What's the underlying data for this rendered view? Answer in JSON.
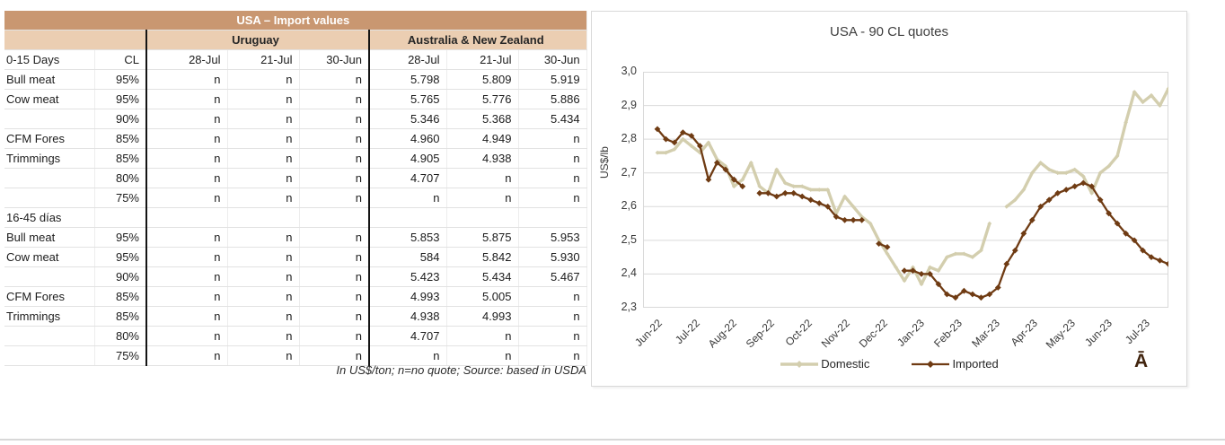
{
  "table": {
    "title": "USA – Import values",
    "group_left_label": "Uruguay",
    "group_right_label": "Australia & New Zealand",
    "header": {
      "section": "0-15 Days",
      "cl": "CL",
      "dates": [
        "28-Jul",
        "21-Jul",
        "30-Jun"
      ]
    },
    "rows": [
      {
        "item": "Bull meat",
        "cl": "95%",
        "values": [
          "n",
          "n",
          "n",
          "5.798",
          "5.809",
          "5.919"
        ]
      },
      {
        "item": "Cow meat",
        "cl": "95%",
        "values": [
          "n",
          "n",
          "n",
          "5.765",
          "5.776",
          "5.886"
        ]
      },
      {
        "item": "",
        "cl": "90%",
        "values": [
          "n",
          "n",
          "n",
          "5.346",
          "5.368",
          "5.434"
        ]
      },
      {
        "item": "CFM Fores",
        "cl": "85%",
        "values": [
          "n",
          "n",
          "n",
          "4.960",
          "4.949",
          "n"
        ]
      },
      {
        "item": "Trimmings",
        "cl": "85%",
        "values": [
          "n",
          "n",
          "n",
          "4.905",
          "4.938",
          "n"
        ]
      },
      {
        "item": "",
        "cl": "80%",
        "values": [
          "n",
          "n",
          "n",
          "4.707",
          "n",
          "n"
        ]
      },
      {
        "item": "",
        "cl": "75%",
        "values": [
          "n",
          "n",
          "n",
          "n",
          "n",
          "n"
        ]
      },
      {
        "section": "16-45 días"
      },
      {
        "item": "Bull meat",
        "cl": "95%",
        "values": [
          "n",
          "n",
          "n",
          "5.853",
          "5.875",
          "5.953"
        ]
      },
      {
        "item": "Cow meat",
        "cl": "95%",
        "values": [
          "n",
          "n",
          "n",
          "584",
          "5.842",
          "5.930"
        ]
      },
      {
        "item": "",
        "cl": "90%",
        "values": [
          "n",
          "n",
          "n",
          "5.423",
          "5.434",
          "5.467"
        ]
      },
      {
        "item": "CFM Fores",
        "cl": "85%",
        "values": [
          "n",
          "n",
          "n",
          "4.993",
          "5.005",
          "n"
        ]
      },
      {
        "item": "Trimmings",
        "cl": "85%",
        "values": [
          "n",
          "n",
          "n",
          "4.938",
          "4.993",
          "n"
        ]
      },
      {
        "item": "",
        "cl": "80%",
        "values": [
          "n",
          "n",
          "n",
          "4.707",
          "n",
          "n"
        ]
      },
      {
        "item": "",
        "cl": "75%",
        "values": [
          "n",
          "n",
          "n",
          "n",
          "n",
          "n"
        ]
      }
    ],
    "footnote": "In US$/ton; n=no quote; Source: based in USDA",
    "colors": {
      "title_bg": "#c99771",
      "subheader_bg": "#ebceb2"
    }
  },
  "chart_data": {
    "type": "line",
    "title": "USA - 90 CL quotes",
    "ylabel": "US$/lb",
    "ylim": [
      2.3,
      3.0
    ],
    "ytick_step": 0.1,
    "ytick_labels": [
      "3,0",
      "2,9",
      "2,8",
      "2,7",
      "2,6",
      "2,5",
      "2,4",
      "2,3"
    ],
    "x_tick_labels": [
      "Jun-22",
      "Jul-22",
      "Aug-22",
      "Sep-22",
      "Oct-22",
      "Nov-22",
      "Dec-22",
      "Jan-23",
      "Feb-23",
      "Mar-23",
      "Apr-23",
      "May-23",
      "Jun-23",
      "Jul-23"
    ],
    "grid": true,
    "legend_position": "bottom",
    "watermark": "Ā",
    "series": [
      {
        "name": "Domestic",
        "color": "#d3ceae",
        "values": [
          2.76,
          2.76,
          2.77,
          2.8,
          2.78,
          2.76,
          2.79,
          2.74,
          2.72,
          2.66,
          2.68,
          2.73,
          2.66,
          2.64,
          2.71,
          2.67,
          2.66,
          2.66,
          2.65,
          2.65,
          2.65,
          2.58,
          2.63,
          2.6,
          2.57,
          2.55,
          2.5,
          2.46,
          2.42,
          2.38,
          2.42,
          2.37,
          2.42,
          2.41,
          2.45,
          2.46,
          2.46,
          2.45,
          2.47,
          2.55,
          null,
          2.6,
          2.62,
          2.65,
          2.7,
          2.73,
          2.71,
          2.7,
          2.7,
          2.71,
          2.69,
          2.64,
          2.7,
          2.72,
          2.75,
          2.85,
          2.94,
          2.91,
          2.93,
          2.9,
          2.95
        ]
      },
      {
        "name": "Imported",
        "color": "#6f3b13",
        "values": [
          2.83,
          2.8,
          2.79,
          2.82,
          2.81,
          2.78,
          2.68,
          2.73,
          2.71,
          2.68,
          2.66,
          null,
          2.64,
          2.64,
          2.63,
          2.64,
          2.64,
          2.63,
          2.62,
          2.61,
          2.6,
          2.57,
          2.56,
          2.56,
          2.56,
          null,
          2.49,
          2.48,
          null,
          2.41,
          2.41,
          2.4,
          2.4,
          2.37,
          2.34,
          2.33,
          2.35,
          2.34,
          2.33,
          2.34,
          2.36,
          2.43,
          2.47,
          2.52,
          2.56,
          2.6,
          2.62,
          2.64,
          2.65,
          2.66,
          2.67,
          2.66,
          2.62,
          2.58,
          2.55,
          2.52,
          2.5,
          2.47,
          2.45,
          2.44,
          2.43
        ]
      }
    ]
  }
}
